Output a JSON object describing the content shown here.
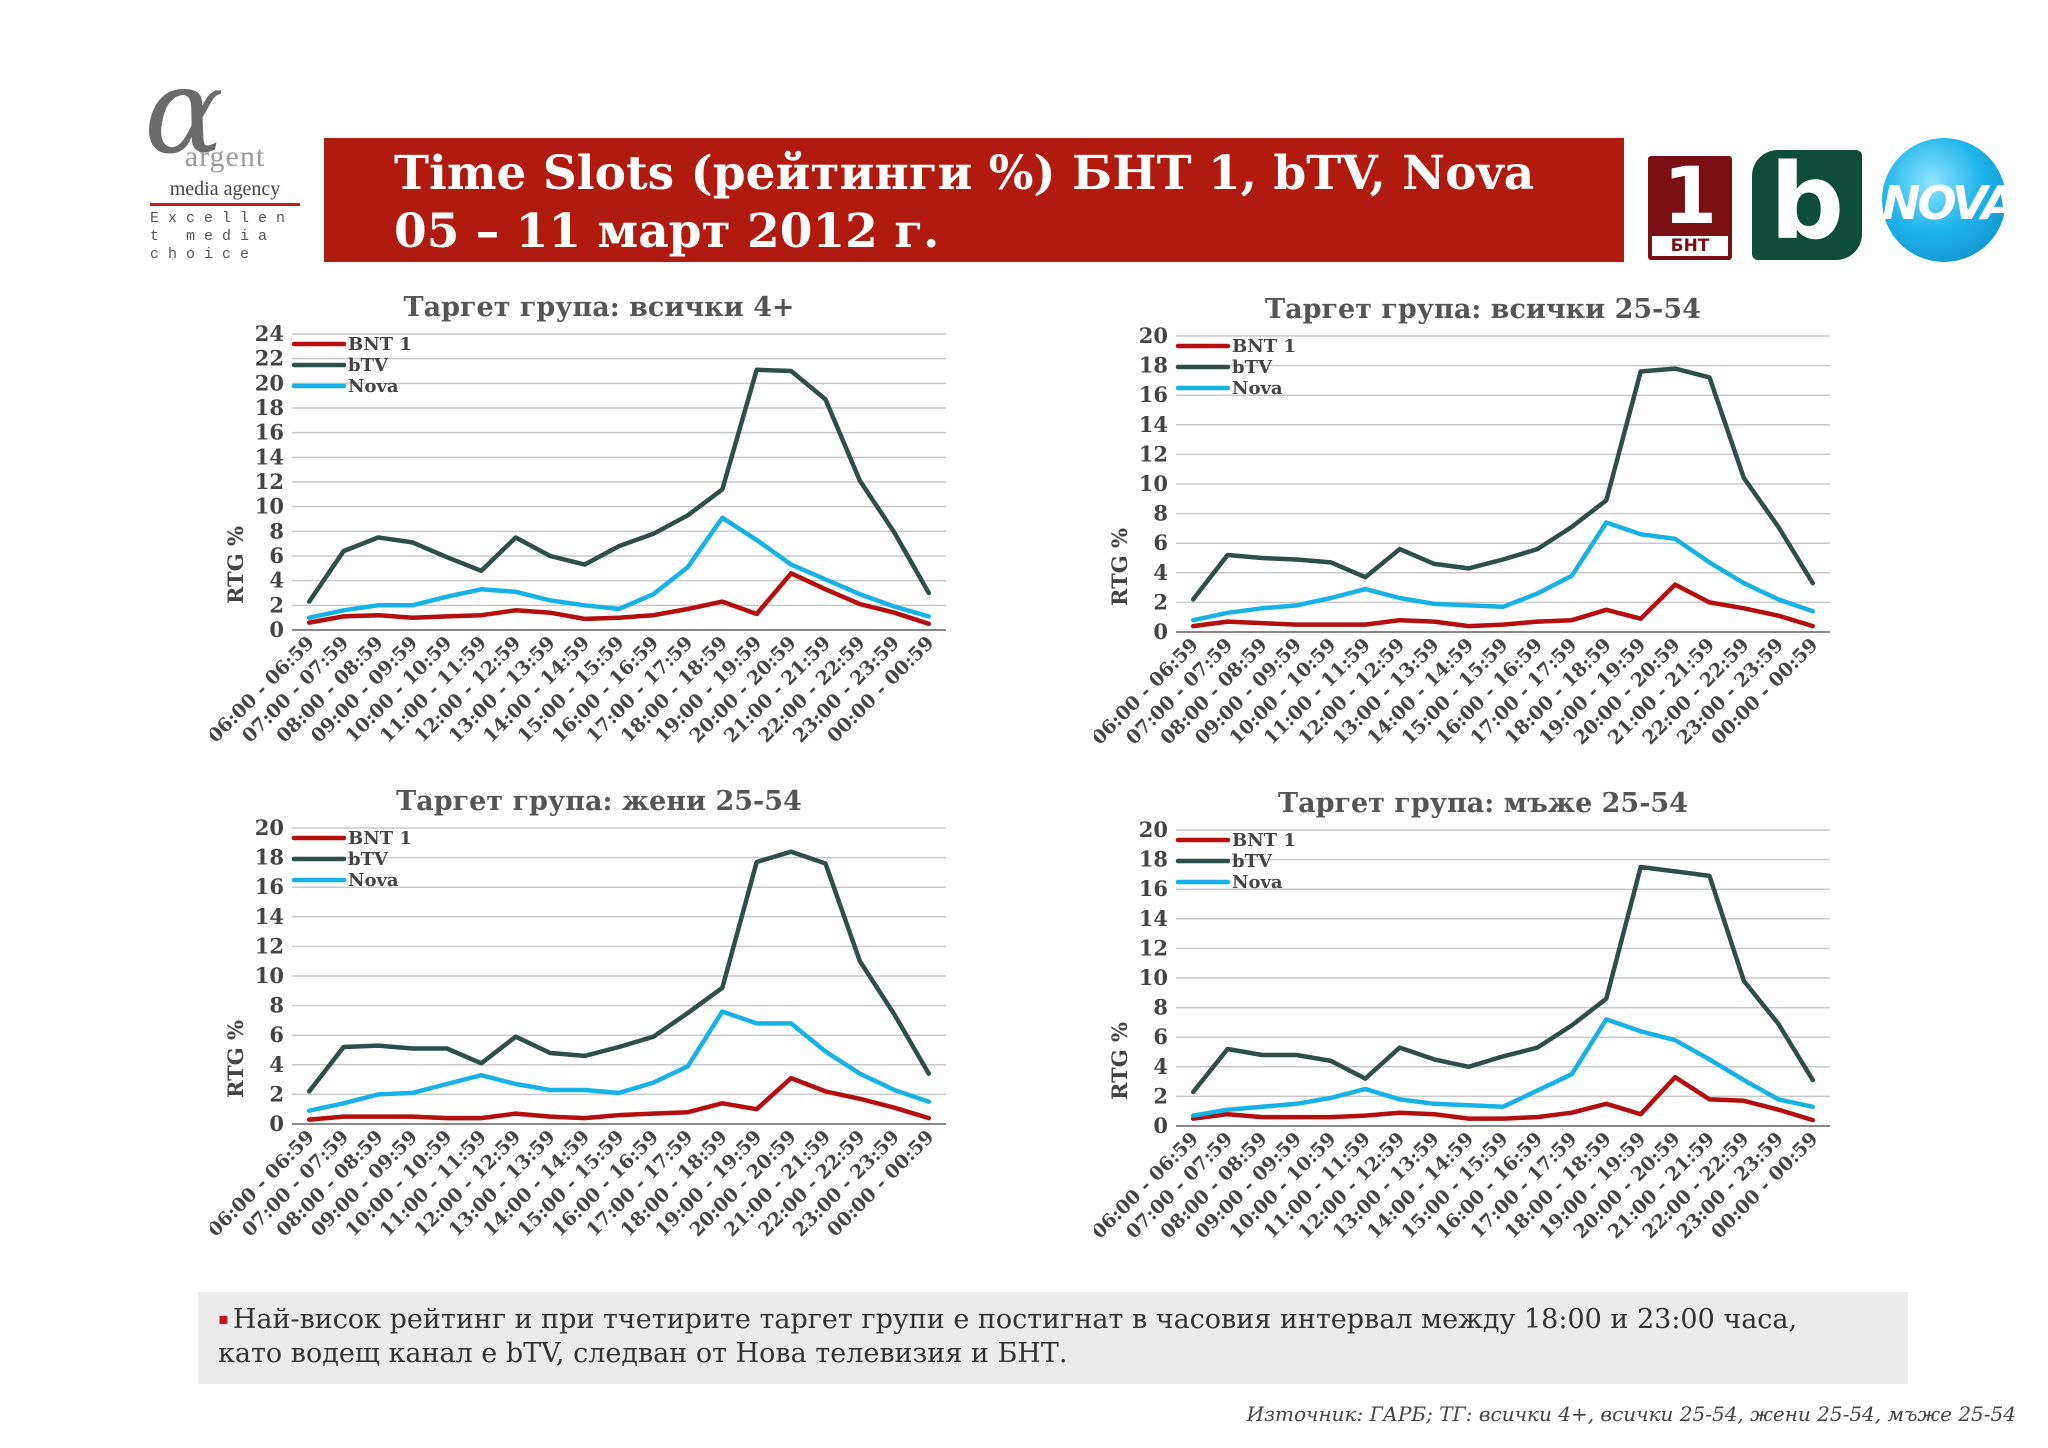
{
  "logo": {
    "brand": "argent",
    "agency": "media agency",
    "motto": "Excellent media choice"
  },
  "header": {
    "title_line1": "Time Slots (рейтинги %) БНТ 1, bTV, Nova",
    "title_line2": "05 – 11 март 2012 г."
  },
  "channels": {
    "bnt_number": "1",
    "bnt_label": "БНТ",
    "btv_letter": "b",
    "nova_label": "NOVA"
  },
  "colors": {
    "accent_red": "#b01a0f",
    "bnt1": "#b50e0e",
    "btv": "#2c4f4a",
    "nova": "#16b2e6",
    "grid": "#c8c8c8"
  },
  "chart_data": [
    {
      "type": "line",
      "title": "Таргет група: всички 4+",
      "ylabel": "RTG %",
      "xlabel": "",
      "ylim": [
        0,
        24
      ],
      "yticks": [
        0,
        2,
        4,
        6,
        8,
        10,
        12,
        14,
        16,
        18,
        20,
        22,
        24
      ],
      "grid": true,
      "legend": "top-left",
      "categories": [
        "06:00 - 06:59",
        "07:00 - 07:59",
        "08:00 - 08:59",
        "09:00 - 09:59",
        "10:00 - 10:59",
        "11:00 - 11:59",
        "12:00 - 12:59",
        "13:00 - 13:59",
        "14:00 - 14:59",
        "15:00 - 15:59",
        "16:00 - 16:59",
        "17:00 - 17:59",
        "18:00 - 18:59",
        "19:00 - 19:59",
        "20:00 - 20:59",
        "21:00 - 21:59",
        "22:00 - 22:59",
        "23:00 - 23:59",
        "00:00 - 00:59"
      ],
      "series": [
        {
          "name": "BNT 1",
          "values": [
            0.6,
            1.1,
            1.2,
            1.0,
            1.1,
            1.2,
            1.6,
            1.4,
            0.9,
            1.0,
            1.2,
            1.7,
            2.3,
            1.3,
            4.6,
            3.3,
            2.1,
            1.4,
            0.5
          ]
        },
        {
          "name": "bTV",
          "values": [
            2.3,
            6.4,
            7.5,
            7.1,
            5.9,
            4.8,
            7.5,
            6.0,
            5.3,
            6.8,
            7.8,
            9.3,
            11.4,
            21.1,
            21.0,
            18.7,
            12.1,
            7.9,
            3.0
          ]
        },
        {
          "name": "Nova",
          "values": [
            1.0,
            1.6,
            2.0,
            2.0,
            2.7,
            3.3,
            3.1,
            2.4,
            2.0,
            1.7,
            2.9,
            5.1,
            9.1,
            7.3,
            5.3,
            4.1,
            2.9,
            1.9,
            1.1
          ]
        }
      ]
    },
    {
      "type": "line",
      "title": "Таргет група: всички 25-54",
      "ylabel": "RTG %",
      "xlabel": "",
      "ylim": [
        0,
        20
      ],
      "yticks": [
        0,
        2,
        4,
        6,
        8,
        10,
        12,
        14,
        16,
        18,
        20
      ],
      "grid": true,
      "legend": "top-left",
      "categories": [
        "06:00 - 06:59",
        "07:00 - 07:59",
        "08:00 - 08:59",
        "09:00 - 09:59",
        "10:00 - 10:59",
        "11:00 - 11:59",
        "12:00 - 12:59",
        "13:00 - 13:59",
        "14:00 - 14:59",
        "15:00 - 15:59",
        "16:00 - 16:59",
        "17:00 - 17:59",
        "18:00 - 18:59",
        "19:00 - 19:59",
        "20:00 - 20:59",
        "21:00 - 21:59",
        "22:00 - 22:59",
        "23:00 - 23:59",
        "00:00 - 00:59"
      ],
      "series": [
        {
          "name": "BNT 1",
          "values": [
            0.4,
            0.7,
            0.6,
            0.5,
            0.5,
            0.5,
            0.8,
            0.7,
            0.4,
            0.5,
            0.7,
            0.8,
            1.5,
            0.9,
            3.2,
            2.0,
            1.6,
            1.1,
            0.4
          ]
        },
        {
          "name": "bTV",
          "values": [
            2.2,
            5.2,
            5.0,
            4.9,
            4.7,
            3.7,
            5.6,
            4.6,
            4.3,
            4.9,
            5.6,
            7.1,
            8.9,
            17.6,
            17.8,
            17.2,
            10.4,
            7.1,
            3.3
          ]
        },
        {
          "name": "Nova",
          "values": [
            0.8,
            1.3,
            1.6,
            1.8,
            2.3,
            2.9,
            2.3,
            1.9,
            1.8,
            1.7,
            2.6,
            3.8,
            7.4,
            6.6,
            6.3,
            4.7,
            3.3,
            2.2,
            1.4
          ]
        }
      ]
    },
    {
      "type": "line",
      "title": "Таргет група: жени 25-54",
      "ylabel": "RTG %",
      "xlabel": "",
      "ylim": [
        0,
        20
      ],
      "yticks": [
        0,
        2,
        4,
        6,
        8,
        10,
        12,
        14,
        16,
        18,
        20
      ],
      "grid": true,
      "legend": "top-left",
      "categories": [
        "06:00 - 06:59",
        "07:00 - 07:59",
        "08:00 - 08:59",
        "09:00 - 09:59",
        "10:00 - 10:59",
        "11:00 - 11:59",
        "12:00 - 12:59",
        "13:00 - 13:59",
        "14:00 - 14:59",
        "15:00 - 15:59",
        "16:00 - 16:59",
        "17:00 - 17:59",
        "18:00 - 18:59",
        "19:00 - 19:59",
        "20:00 - 20:59",
        "21:00 - 21:59",
        "22:00 - 22:59",
        "23:00 - 23:59",
        "00:00 - 00:59"
      ],
      "series": [
        {
          "name": "BNT 1",
          "values": [
            0.3,
            0.5,
            0.5,
            0.5,
            0.4,
            0.4,
            0.7,
            0.5,
            0.4,
            0.6,
            0.7,
            0.8,
            1.4,
            1.0,
            3.1,
            2.2,
            1.7,
            1.1,
            0.4
          ]
        },
        {
          "name": "bTV",
          "values": [
            2.2,
            5.2,
            5.3,
            5.1,
            5.1,
            4.1,
            5.9,
            4.8,
            4.6,
            5.2,
            5.9,
            7.5,
            9.2,
            17.7,
            18.4,
            17.6,
            11.0,
            7.4,
            3.4
          ]
        },
        {
          "name": "Nova",
          "values": [
            0.9,
            1.4,
            2.0,
            2.1,
            2.7,
            3.3,
            2.7,
            2.3,
            2.3,
            2.1,
            2.8,
            3.9,
            7.6,
            6.8,
            6.8,
            4.9,
            3.4,
            2.3,
            1.5
          ]
        }
      ]
    },
    {
      "type": "line",
      "title": "Таргет група: мъже 25-54",
      "ylabel": "RTG %",
      "xlabel": "",
      "ylim": [
        0,
        20
      ],
      "yticks": [
        0,
        2,
        4,
        6,
        8,
        10,
        12,
        14,
        16,
        18,
        20
      ],
      "grid": true,
      "legend": "top-left",
      "categories": [
        "06:00 - 06:59",
        "07:00 - 07:59",
        "08:00 - 08:59",
        "09:00 - 09:59",
        "10:00 - 10:59",
        "11:00 - 11:59",
        "12:00 - 12:59",
        "13:00 - 13:59",
        "14:00 - 14:59",
        "15:00 - 15:59",
        "16:00 - 16:59",
        "17:00 - 17:59",
        "18:00 - 18:59",
        "19:00 - 19:59",
        "20:00 - 20:59",
        "21:00 - 21:59",
        "22:00 - 22:59",
        "23:00 - 23:59",
        "00:00 - 00:59"
      ],
      "series": [
        {
          "name": "BNT 1",
          "values": [
            0.5,
            0.8,
            0.6,
            0.6,
            0.6,
            0.7,
            0.9,
            0.8,
            0.5,
            0.5,
            0.6,
            0.9,
            1.5,
            0.8,
            3.3,
            1.8,
            1.7,
            1.1,
            0.4
          ]
        },
        {
          "name": "bTV",
          "values": [
            2.3,
            5.2,
            4.8,
            4.8,
            4.4,
            3.2,
            5.3,
            4.5,
            4.0,
            4.7,
            5.3,
            6.8,
            8.6,
            17.5,
            17.2,
            16.9,
            9.8,
            6.9,
            3.1
          ]
        },
        {
          "name": "Nova",
          "values": [
            0.7,
            1.1,
            1.3,
            1.5,
            1.9,
            2.5,
            1.8,
            1.5,
            1.4,
            1.3,
            2.4,
            3.5,
            7.2,
            6.4,
            5.8,
            4.5,
            3.1,
            1.8,
            1.3
          ]
        }
      ]
    }
  ],
  "note": {
    "text_line1": "Най-висок рейтинг и при тчетирите таргет групи е постигнат в часовия интервал между 18:00 и 23:00 часа,",
    "text_line2": "като водещ канал е bTV, следван от Нова телевизия и БНТ.",
    "bullet": "▪"
  },
  "source": {
    "text": "Източник: ГАРБ; ТГ: всички 4+, всички 25-54, жени 25-54, мъже 25-54"
  }
}
